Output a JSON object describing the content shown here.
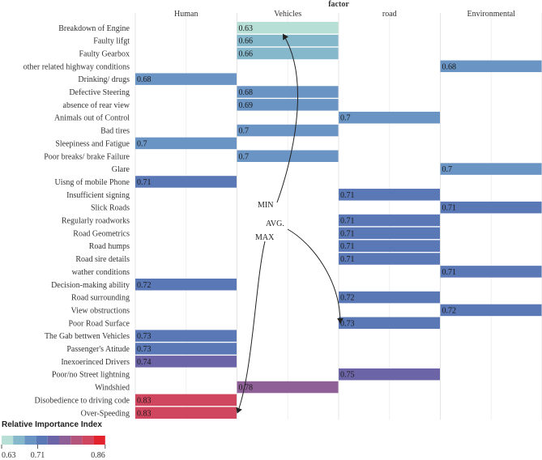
{
  "chart_data": {
    "type": "heatmap",
    "title": "factor",
    "columns": [
      "Human",
      "Vehicles",
      "road",
      "Environmental"
    ],
    "rows": [
      {
        "label": "Breakdown of Engine",
        "column": "Vehicles",
        "value": 0.63
      },
      {
        "label": "Faulty lifgt",
        "column": "Vehicles",
        "value": 0.66
      },
      {
        "label": "Faulty Gearbox",
        "column": "Vehicles",
        "value": 0.66
      },
      {
        "label": "other related highway conditions",
        "column": "Environmental",
        "value": 0.68
      },
      {
        "label": "Drinking/ drugs",
        "column": "Human",
        "value": 0.68
      },
      {
        "label": "Defective Steering",
        "column": "Vehicles",
        "value": 0.68
      },
      {
        "label": "absence of rear view",
        "column": "Vehicles",
        "value": 0.69
      },
      {
        "label": "Animals out of Control",
        "column": "road",
        "value": 0.7
      },
      {
        "label": "Bad tires",
        "column": "Vehicles",
        "value": 0.7
      },
      {
        "label": "Sleepiness and Fatigue",
        "column": "Human",
        "value": 0.7
      },
      {
        "label": "Poor breaks/ brake Failure",
        "column": "Vehicles",
        "value": 0.7
      },
      {
        "label": "Glare",
        "column": "Environmental",
        "value": 0.7
      },
      {
        "label": "Uisng of mobile Phone",
        "column": "Human",
        "value": 0.71
      },
      {
        "label": "Insufficient signing",
        "column": "road",
        "value": 0.71
      },
      {
        "label": "Slick Roads",
        "column": "Environmental",
        "value": 0.71
      },
      {
        "label": "Regularly roadworks",
        "column": "road",
        "value": 0.71
      },
      {
        "label": "Road Geometrics",
        "column": "road",
        "value": 0.71
      },
      {
        "label": "Road humps",
        "column": "road",
        "value": 0.71
      },
      {
        "label": "Road sire details",
        "column": "road",
        "value": 0.71
      },
      {
        "label": "wather conditions",
        "column": "Environmental",
        "value": 0.71
      },
      {
        "label": "Decision-making ability",
        "column": "Human",
        "value": 0.72
      },
      {
        "label": "Road surrounding",
        "column": "road",
        "value": 0.72
      },
      {
        "label": "View obstructions",
        "column": "Environmental",
        "value": 0.72
      },
      {
        "label": "Poor Road Surface",
        "column": "road",
        "value": 0.73
      },
      {
        "label": "The Gab bettwen Vehicles",
        "column": "Human",
        "value": 0.73
      },
      {
        "label": "Passenger's Atitude",
        "column": "Human",
        "value": 0.73
      },
      {
        "label": "Inexoerinced Drivers",
        "column": "Human",
        "value": 0.74
      },
      {
        "label": "Poor/no Street lightning",
        "column": "road",
        "value": 0.75
      },
      {
        "label": "Windshied",
        "column": "Vehicles",
        "value": 0.78
      },
      {
        "label": "Disobedience to driving code",
        "column": "Human",
        "value": 0.83
      },
      {
        "label": "Over-Speeding",
        "column": "Human",
        "value": 0.83
      }
    ],
    "legend": {
      "title": "Relative Importance Index",
      "min": 0.63,
      "max": 0.86,
      "ticks": [
        0.63,
        0.71,
        0.86
      ],
      "tick_labels": [
        "0.63",
        "0.71",
        "0.86"
      ],
      "colors": [
        "#b7dfd5",
        "#86b8cc",
        "#6a94c4",
        "#5a78b6",
        "#6b64a6",
        "#8f6098",
        "#b3557c",
        "#d1465f",
        "#e2232e"
      ]
    },
    "annotations": [
      {
        "text": "MIN",
        "target_row": "Breakdown of Engine"
      },
      {
        "text": "AVG.",
        "target_row": "Poor Road Surface"
      },
      {
        "text": "MAX",
        "target_row": "Over-Speeding"
      }
    ],
    "grid": true
  }
}
